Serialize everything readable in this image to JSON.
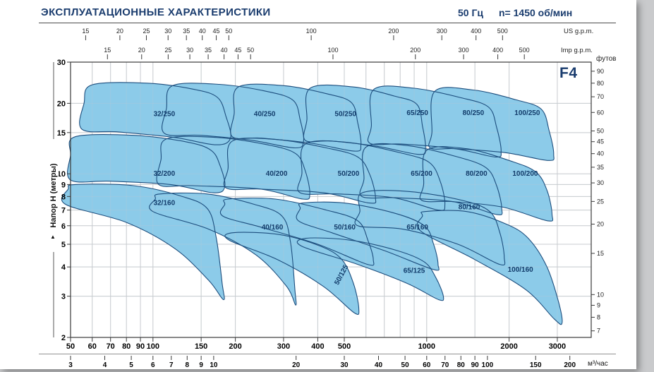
{
  "header": {
    "title": "ЭКСПЛУАТАЦИОННЫЕ  ХАРАКТЕРИСТИКИ",
    "frequency": "50 Гц",
    "speed": "n= 1450 об/мин"
  },
  "badge": "F4",
  "axes": {
    "left_title": "Напор Н (метры)",
    "right_title": "футов",
    "top_us_title": "US g.p.m.",
    "top_imp_title": "Imp g.p.m.",
    "bottom2_title": "м³/час",
    "arrow_glyph": "▲"
  },
  "colors": {
    "navy": "#1A3C6E",
    "region_fill": "#8CCBE9",
    "region_stroke": "#1D4E7E",
    "region_label": "#123C6B",
    "grid": "#C9CDD1",
    "axis": "#3A3A3A",
    "tick_text": "#222222"
  },
  "chart_data": {
    "type": "area",
    "x_scale": "log",
    "y_scale": "log",
    "x_range": [
      50,
      3990
    ],
    "y_range": [
      2,
      30
    ],
    "x_gridlines": [
      60,
      70,
      80,
      90,
      100,
      150,
      200,
      300,
      400,
      500,
      600,
      700,
      800,
      900,
      1000,
      1500,
      2000,
      3000
    ],
    "y_gridlines": [
      3,
      4,
      5,
      6,
      7,
      8,
      9,
      10,
      15,
      20
    ],
    "x_ticks_flow": [
      50,
      60,
      70,
      80,
      90,
      100,
      150,
      200,
      300,
      400,
      500,
      1000,
      2000,
      3000
    ],
    "x_ticks_m3h": [
      3,
      4,
      5,
      6,
      7,
      8,
      9,
      10,
      20,
      30,
      40,
      50,
      60,
      70,
      80,
      90,
      100,
      150,
      200
    ],
    "x_ticks_us_gpm": [
      15,
      20,
      25,
      30,
      35,
      40,
      45,
      50,
      100,
      200,
      300,
      400,
      500
    ],
    "x_ticks_imp_gpm": [
      15,
      20,
      25,
      30,
      35,
      40,
      45,
      50,
      100,
      200,
      300,
      400,
      500
    ],
    "y_ticks_m": [
      2,
      3,
      4,
      5,
      6,
      7,
      8,
      9,
      10,
      15,
      20,
      30
    ],
    "y_ticks_ft": [
      7,
      8,
      9,
      10,
      15,
      20,
      25,
      30,
      35,
      40,
      45,
      50,
      60,
      70,
      80,
      90
    ],
    "regions": [
      {
        "label": "32/250",
        "label_at": [
          110,
          18
        ],
        "points": [
          [
            55,
            15.5
          ],
          [
            56,
            20
          ],
          [
            60,
            24
          ],
          [
            95,
            24.4
          ],
          [
            140,
            23
          ],
          [
            172,
            21.2
          ],
          [
            185,
            17.5
          ],
          [
            192,
            14.2
          ],
          [
            170,
            13.3
          ],
          [
            120,
            14.3
          ],
          [
            75,
            15.1
          ]
        ]
      },
      {
        "label": "40/250",
        "label_at": [
          256,
          18
        ],
        "points": [
          [
            110,
            14.9
          ],
          [
            112,
            19
          ],
          [
            118,
            23.8
          ],
          [
            175,
            24.1
          ],
          [
            260,
            22.5
          ],
          [
            325,
            20.6
          ],
          [
            345,
            17
          ],
          [
            355,
            13.8
          ],
          [
            330,
            12.9
          ],
          [
            230,
            13.9
          ],
          [
            150,
            14.6
          ]
        ]
      },
      {
        "label": "50/250",
        "label_at": [
          505,
          18
        ],
        "points": [
          [
            195,
            14.4
          ],
          [
            198,
            18
          ],
          [
            205,
            23.5
          ],
          [
            300,
            23.8
          ],
          [
            430,
            22
          ],
          [
            530,
            20.2
          ],
          [
            560,
            16.5
          ],
          [
            575,
            13.3
          ],
          [
            545,
            12.5
          ],
          [
            380,
            13.5
          ],
          [
            250,
            14.2
          ]
        ]
      },
      {
        "label": "65/250",
        "label_at": [
          925,
          18.2
        ],
        "points": [
          [
            360,
            13.9
          ],
          [
            365,
            17
          ],
          [
            375,
            23.2
          ],
          [
            540,
            23.5
          ],
          [
            760,
            21.5
          ],
          [
            920,
            19.8
          ],
          [
            965,
            16
          ],
          [
            990,
            12.9
          ],
          [
            940,
            12.1
          ],
          [
            660,
            13.1
          ],
          [
            450,
            13.8
          ]
        ]
      },
      {
        "label": "80/250",
        "label_at": [
          1480,
          18.2
        ],
        "points": [
          [
            620,
            13.5
          ],
          [
            628,
            16
          ],
          [
            640,
            22.9
          ],
          [
            900,
            23.2
          ],
          [
            1320,
            21.2
          ],
          [
            1680,
            19.3
          ],
          [
            1800,
            15.8
          ],
          [
            1870,
            12.5
          ],
          [
            1780,
            11.8
          ],
          [
            1270,
            12.8
          ],
          [
            810,
            13.4
          ]
        ]
      },
      {
        "label": "100/250",
        "label_at": [
          2330,
          18.2
        ],
        "points": [
          [
            1030,
            12.9
          ],
          [
            1045,
            15
          ],
          [
            1070,
            22.5
          ],
          [
            1480,
            22.8
          ],
          [
            2120,
            20.7
          ],
          [
            2620,
            18.9
          ],
          [
            2800,
            15.3
          ],
          [
            2910,
            12.1
          ],
          [
            2780,
            11.4
          ],
          [
            1950,
            12.3
          ],
          [
            1280,
            12.8
          ]
        ]
      },
      {
        "label": "32/200",
        "label_at": [
          110,
          10
        ],
        "points": [
          [
            50,
            9.4
          ],
          [
            50,
            12
          ],
          [
            52,
            14.4
          ],
          [
            85,
            14.6
          ],
          [
            132,
            13.7
          ],
          [
            163,
            12.6
          ],
          [
            176,
            10.8
          ],
          [
            183,
            8.8
          ],
          [
            166,
            8.3
          ],
          [
            116,
            9
          ],
          [
            70,
            9.3
          ]
        ]
      },
      {
        "label": "40/200",
        "label_at": [
          283,
          10
        ],
        "points": [
          [
            105,
            9
          ],
          [
            107,
            11.5
          ],
          [
            112,
            14.1
          ],
          [
            170,
            14.3
          ],
          [
            262,
            13.3
          ],
          [
            332,
            12.2
          ],
          [
            360,
            10.3
          ],
          [
            374,
            8.2
          ],
          [
            352,
            7.8
          ],
          [
            248,
            8.6
          ],
          [
            140,
            8.9
          ]
        ]
      },
      {
        "label": "50/200",
        "label_at": [
          518,
          10
        ],
        "points": [
          [
            185,
            8.7
          ],
          [
            188,
            10.5
          ],
          [
            195,
            13.8
          ],
          [
            285,
            14
          ],
          [
            430,
            12.9
          ],
          [
            560,
            11.8
          ],
          [
            620,
            9.9
          ],
          [
            650,
            7.9
          ],
          [
            618,
            7.5
          ],
          [
            420,
            8.3
          ],
          [
            250,
            8.6
          ]
        ]
      },
      {
        "label": "65/200",
        "label_at": [
          958,
          10
        ],
        "points": [
          [
            345,
            8.3
          ],
          [
            350,
            10
          ],
          [
            360,
            13.4
          ],
          [
            520,
            13.6
          ],
          [
            800,
            12.3
          ],
          [
            1020,
            11.2
          ],
          [
            1120,
            9.3
          ],
          [
            1165,
            7.4
          ],
          [
            1100,
            7
          ],
          [
            760,
            7.9
          ],
          [
            480,
            8.2
          ]
        ]
      },
      {
        "label": "80/200",
        "label_at": [
          1520,
          10
        ],
        "points": [
          [
            580,
            8
          ],
          [
            590,
            9.5
          ],
          [
            600,
            13
          ],
          [
            850,
            13.2
          ],
          [
            1300,
            11.8
          ],
          [
            1650,
            10.6
          ],
          [
            1800,
            8.9
          ],
          [
            1880,
            7.1
          ],
          [
            1800,
            6.7
          ],
          [
            1250,
            7.6
          ],
          [
            780,
            7.9
          ]
        ]
      },
      {
        "label": "100/200",
        "label_at": [
          2290,
          10
        ],
        "points": [
          [
            960,
            7.7
          ],
          [
            975,
            9
          ],
          [
            1000,
            12.6
          ],
          [
            1400,
            12.8
          ],
          [
            2000,
            11.4
          ],
          [
            2500,
            10.2
          ],
          [
            2750,
            8.5
          ],
          [
            2870,
            6.7
          ],
          [
            2760,
            6.3
          ],
          [
            1900,
            7.2
          ],
          [
            1250,
            7.6
          ]
        ]
      },
      {
        "label": "32/160",
        "label_at": [
          110,
          7.5
        ],
        "points": [
          [
            48,
            7.4
          ],
          [
            49,
            8.6
          ],
          [
            52,
            9
          ],
          [
            85,
            8.9
          ],
          [
            128,
            8
          ],
          [
            158,
            7.1
          ],
          [
            170,
            5.4
          ],
          [
            179,
            3.4
          ],
          [
            181,
            2.9
          ],
          [
            160,
            3.5
          ],
          [
            120,
            4.8
          ],
          [
            80,
            6.2
          ]
        ]
      },
      {
        "label": "40/160",
        "label_at": [
          273,
          5.9
        ],
        "points": [
          [
            100,
            6.9
          ],
          [
            102,
            7.8
          ],
          [
            106,
            8.2
          ],
          [
            158,
            8.2
          ],
          [
            235,
            7.4
          ],
          [
            296,
            6.6
          ],
          [
            318,
            5.1
          ],
          [
            330,
            3.2
          ],
          [
            332,
            2.75
          ],
          [
            308,
            3.3
          ],
          [
            238,
            4.5
          ],
          [
            160,
            5.8
          ]
        ]
      },
      {
        "label": "50/160",
        "label_at": [
          502,
          5.9
        ],
        "points": [
          [
            180,
            6.6
          ],
          [
            183,
            7.4
          ],
          [
            188,
            7.8
          ],
          [
            280,
            7.8
          ],
          [
            430,
            7
          ],
          [
            560,
            6.3
          ],
          [
            610,
            5.2
          ],
          [
            638,
            4.3
          ],
          [
            608,
            4.1
          ],
          [
            400,
            5
          ],
          [
            250,
            5.9
          ]
        ]
      },
      {
        "label": "65/160",
        "label_at": [
          925,
          5.9
        ],
        "points": [
          [
            340,
            6.3
          ],
          [
            345,
            7.1
          ],
          [
            352,
            7.5
          ],
          [
            500,
            7.5
          ],
          [
            760,
            6.8
          ],
          [
            980,
            6
          ],
          [
            1060,
            5
          ],
          [
            1100,
            4.1
          ],
          [
            1058,
            3.9
          ],
          [
            700,
            4.7
          ],
          [
            450,
            5.6
          ]
        ]
      },
      {
        "label": "80/160",
        "label_at": [
          1430,
          7.2
        ],
        "points": [
          [
            560,
            6
          ],
          [
            570,
            6.9
          ],
          [
            582,
            8.3
          ],
          [
            860,
            8.4
          ],
          [
            1350,
            7.7
          ],
          [
            1700,
            6.9
          ],
          [
            1850,
            5.6
          ],
          [
            1920,
            4.4
          ],
          [
            1850,
            4.1
          ],
          [
            1300,
            5
          ],
          [
            820,
            5.8
          ]
        ]
      },
      {
        "label": "100/160",
        "label_at": [
          2200,
          3.9
        ],
        "points": [
          [
            950,
            5.7
          ],
          [
            965,
            6.6
          ],
          [
            985,
            6.9
          ],
          [
            1400,
            6.9
          ],
          [
            1950,
            6.1
          ],
          [
            2350,
            5.3
          ],
          [
            2750,
            4
          ],
          [
            3040,
            2.8
          ],
          [
            3120,
            2.3
          ],
          [
            2920,
            2.4
          ],
          [
            2300,
            3.2
          ],
          [
            1500,
            4.3
          ]
        ]
      },
      {
        "label": "50/125",
        "label_at": [
          488,
          3.7
        ],
        "label_rot": -62,
        "points": [
          [
            190,
            5.2
          ],
          [
            196,
            5.6
          ],
          [
            290,
            5.5
          ],
          [
            410,
            4.9
          ],
          [
            490,
            4.3
          ],
          [
            540,
            3.4
          ],
          [
            565,
            2.65
          ],
          [
            543,
            2.55
          ],
          [
            420,
            3.3
          ],
          [
            285,
            4.3
          ]
        ]
      },
      {
        "label": "65/125",
        "label_at": [
          900,
          3.85
        ],
        "points": [
          [
            350,
            4.9
          ],
          [
            362,
            5.3
          ],
          [
            530,
            5.2
          ],
          [
            780,
            4.7
          ],
          [
            980,
            4.2
          ],
          [
            1080,
            3.6
          ],
          [
            1150,
            3
          ],
          [
            1105,
            2.9
          ],
          [
            850,
            3.4
          ],
          [
            560,
            4.1
          ]
        ]
      }
    ]
  }
}
